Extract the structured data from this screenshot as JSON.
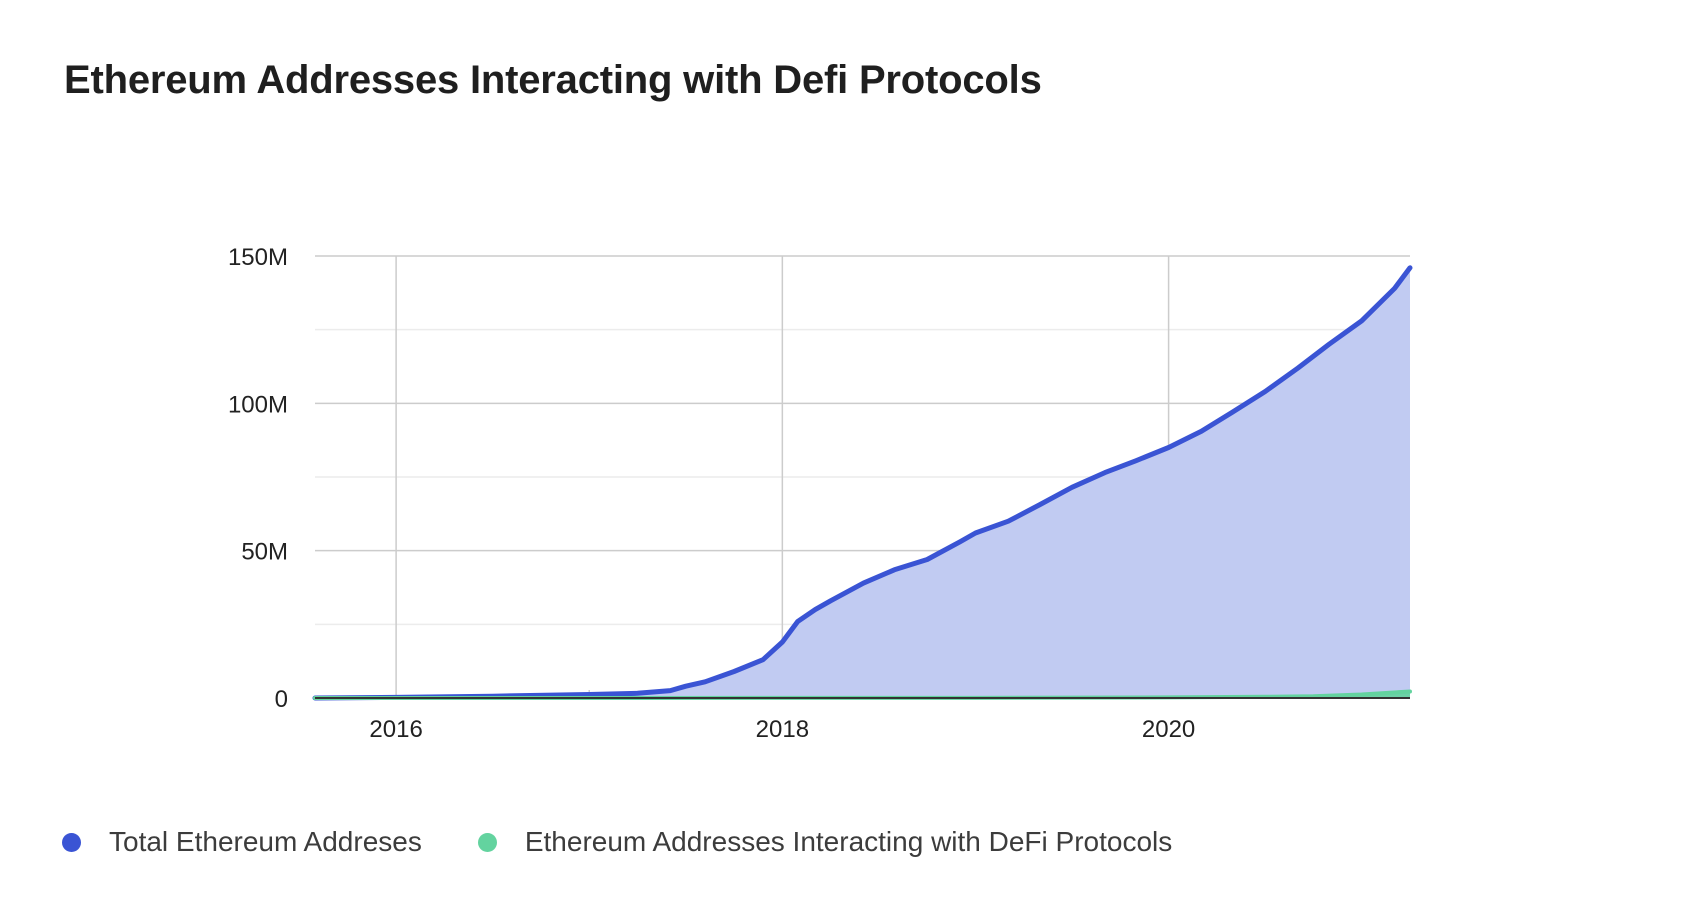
{
  "chart_data": {
    "type": "area",
    "title": "Ethereum Addresses Interacting with Defi Protocols",
    "xlabel": "",
    "ylabel": "",
    "x_ticks": [
      2016,
      2018,
      2020
    ],
    "y_ticks": [
      0,
      50,
      100,
      150
    ],
    "y_tick_labels": [
      "0",
      "50M",
      "100M",
      "150M"
    ],
    "xlim": [
      2015.58,
      2021.25
    ],
    "ylim": [
      0,
      150
    ],
    "y_unit": "M",
    "grid": true,
    "legend_position": "bottom-left",
    "series": [
      {
        "name": "Total Ethereum Addreses",
        "color": "#3a54d4",
        "fill": "#c1cbf2",
        "x": [
          2015.58,
          2016.0,
          2016.5,
          2017.0,
          2017.25,
          2017.42,
          2017.5,
          2017.6,
          2017.75,
          2017.9,
          2018.0,
          2018.08,
          2018.17,
          2018.25,
          2018.42,
          2018.58,
          2018.75,
          2018.92,
          2019.0,
          2019.17,
          2019.33,
          2019.5,
          2019.67,
          2019.83,
          2020.0,
          2020.17,
          2020.33,
          2020.5,
          2020.67,
          2020.83,
          2021.0,
          2021.17,
          2021.25
        ],
        "values": [
          0,
          0.2,
          0.6,
          1.2,
          1.6,
          2.5,
          4,
          5.5,
          9,
          13,
          19,
          26,
          30,
          33,
          39,
          43.5,
          47,
          53,
          56,
          60,
          65.5,
          71.5,
          76.5,
          80.5,
          85,
          90.5,
          97,
          104,
          112,
          120,
          128,
          139,
          146
        ]
      },
      {
        "name": "Ethereum Addresses Interacting with DeFi Protocols",
        "color": "#63d39f",
        "fill": "#63d39f",
        "x": [
          2015.58,
          2019.0,
          2020.0,
          2020.5,
          2020.75,
          2021.0,
          2021.25
        ],
        "values": [
          0,
          0.05,
          0.2,
          0.4,
          0.6,
          1.2,
          2.2
        ]
      }
    ]
  }
}
